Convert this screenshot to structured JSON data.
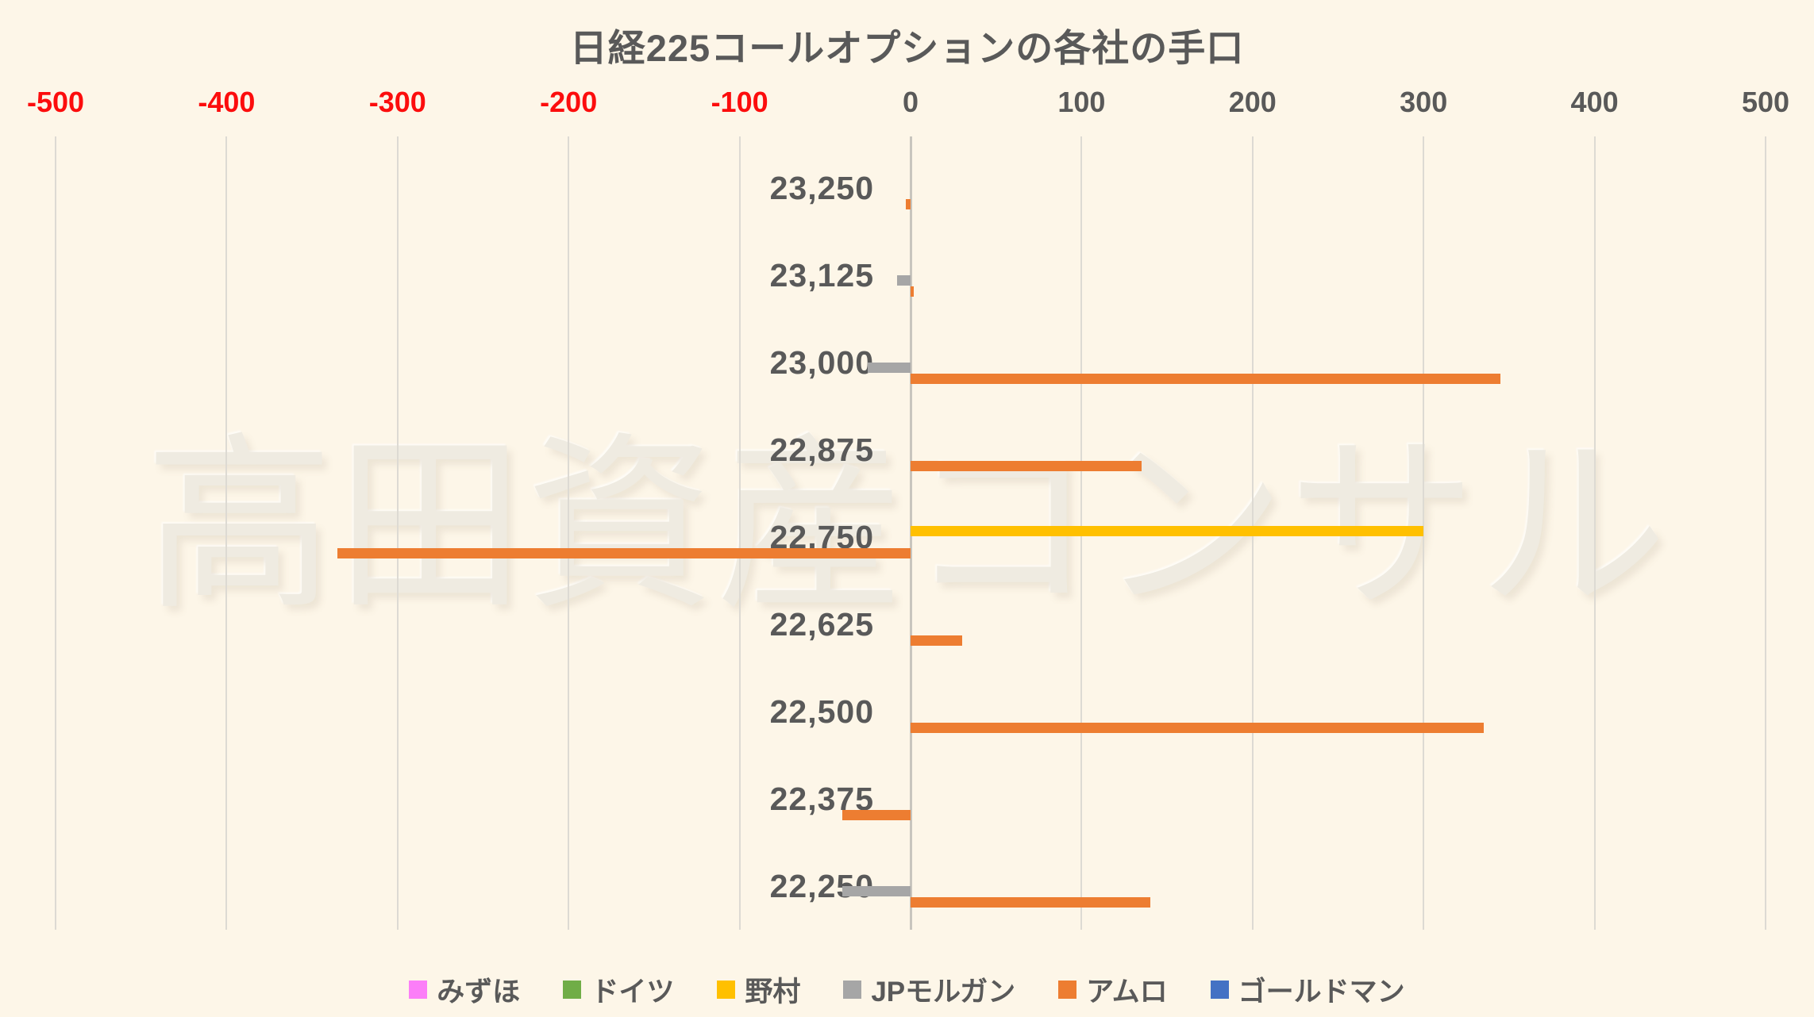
{
  "title": "日経225コールオプションの各社の手口",
  "watermark": "高田資産コンサル",
  "colors": {
    "background": "#FDF6E8",
    "gridline": "#DDDAD3",
    "zero_line": "#C8C5BE",
    "text": "#595959",
    "tick_negative": "#FC0D0D",
    "tick_positive": "#595959"
  },
  "chart_data": {
    "type": "bar",
    "orientation": "horizontal",
    "title": "日経225コールオプションの各社の手口",
    "xlabel": "",
    "ylabel": "",
    "xlim": [
      -500,
      500
    ],
    "x_ticks": [
      -500,
      -400,
      -300,
      -200,
      -100,
      0,
      100,
      200,
      300,
      400,
      500
    ],
    "grid": true,
    "legend_position": "bottom",
    "categories": [
      "23,250",
      "23,125",
      "23,000",
      "22,875",
      "22,750",
      "22,625",
      "22,500",
      "22,375",
      "22,250"
    ],
    "series": [
      {
        "name": "みずほ",
        "color": "#FC7EF8",
        "values": [
          0,
          0,
          0,
          0,
          0,
          0,
          0,
          0,
          0
        ]
      },
      {
        "name": "ドイツ",
        "color": "#70AD47",
        "values": [
          0,
          0,
          0,
          0,
          0,
          0,
          0,
          0,
          0
        ]
      },
      {
        "name": "野村",
        "color": "#FFC000",
        "values": [
          0,
          0,
          0,
          0,
          300,
          0,
          0,
          0,
          0
        ]
      },
      {
        "name": "JPモルガン",
        "color": "#A6A6A6",
        "values": [
          0,
          -8,
          -25,
          0,
          0,
          0,
          0,
          0,
          -40
        ]
      },
      {
        "name": "アムロ",
        "color": "#ED7D31",
        "values": [
          -3,
          2,
          345,
          135,
          -335,
          30,
          335,
          -40,
          140
        ]
      },
      {
        "name": "ゴールドマン",
        "color": "#4472C4",
        "values": [
          0,
          0,
          0,
          0,
          0,
          0,
          0,
          0,
          0
        ]
      }
    ]
  }
}
